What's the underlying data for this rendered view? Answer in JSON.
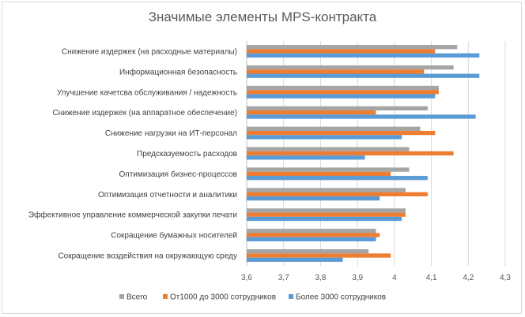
{
  "chart_data": {
    "type": "bar",
    "orientation": "horizontal",
    "title": "Значимые элементы MPS-контракта",
    "categories": [
      "Снижение издержек (на расходные материалы)",
      "Информационная безопасность",
      "Улучшение качетсва обслуживания / надежность",
      "Снижение издержек (на аппаратное обеспечение)",
      "Снижение нагрузки на ИТ-персонал",
      "Предсказуемость расходов",
      "Оптимизация бизнес-процессов",
      "Оптимизация отчетности и аналитики",
      "Эффективное управление коммерческой закупки печати",
      "Сокращение бумажных носителей",
      "Сокращение воздействия на окружающую среду"
    ],
    "series": [
      {
        "name": "Всего",
        "color": "#a5a5a5",
        "values": [
          4.17,
          4.16,
          4.12,
          4.09,
          4.07,
          4.04,
          4.04,
          4.03,
          4.03,
          3.95,
          3.93
        ]
      },
      {
        "name": "От1000 до 3000 сотрудников",
        "color": "#ed7d31",
        "values": [
          4.11,
          4.08,
          4.12,
          3.95,
          4.11,
          4.16,
          3.99,
          4.09,
          4.03,
          3.96,
          3.99
        ]
      },
      {
        "name": "Более 3000 сотрудников",
        "color": "#5b9bd5",
        "values": [
          4.23,
          4.23,
          4.11,
          4.22,
          4.02,
          3.92,
          4.09,
          3.96,
          4.02,
          3.95,
          3.86
        ]
      }
    ],
    "xlim": [
      3.6,
      4.3
    ],
    "x_ticks": [
      "3,6",
      "3,7",
      "3,8",
      "3,9",
      "4",
      "4,1",
      "4,2",
      "4,3"
    ],
    "grid": true,
    "legend": "bottom"
  }
}
